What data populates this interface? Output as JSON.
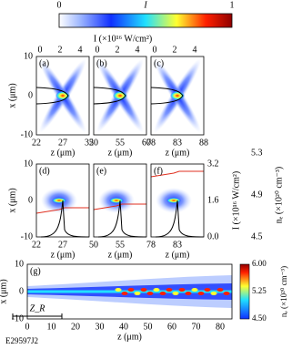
{
  "colorbar": {
    "min": "0",
    "symbol": "I",
    "max": "1"
  },
  "top_axis_label": "I (×10¹⁶ W/cm²)",
  "top_ticks": [
    "0",
    "2",
    "4"
  ],
  "x_label": "x (μm)",
  "x_ticks": [
    "10",
    "0",
    "-10"
  ],
  "z_label": "z (μm)",
  "row1": [
    {
      "label": "(a)",
      "z_ticks": [
        "22",
        "27",
        "32"
      ]
    },
    {
      "label": "(b)",
      "z_ticks": [
        "50",
        "55",
        "60"
      ]
    },
    {
      "label": "(c)",
      "z_ticks": [
        "78",
        "83",
        "88"
      ]
    }
  ],
  "row2": [
    {
      "label": "(d)",
      "z_ticks": [
        "22",
        "27"
      ]
    },
    {
      "label": "(e)",
      "z_ticks": [
        "50",
        "55"
      ]
    },
    {
      "label": "(f)",
      "z_ticks": [
        "78",
        "83"
      ]
    }
  ],
  "row2_right": {
    "intensity_ticks": [
      "3.2",
      "1.6",
      "0.0"
    ],
    "intensity_label": "I (×10¹⁶ W/cm²)",
    "density_ticks": [
      "5.3",
      "4.9",
      "4.5"
    ],
    "density_label": "nₑ (×10²⁰ cm⁻³)"
  },
  "panel_g": {
    "label": "(g)",
    "z_ticks": [
      "0",
      "10",
      "20",
      "30",
      "40",
      "50",
      "60",
      "70",
      "80"
    ],
    "zr_label": "Z_R",
    "colorbar_ticks": [
      "6.00",
      "5.25",
      "4.50"
    ],
    "colorbar_label": "nₑ (×10²⁰ cm⁻³)"
  },
  "figure_id": "E29597J2"
}
